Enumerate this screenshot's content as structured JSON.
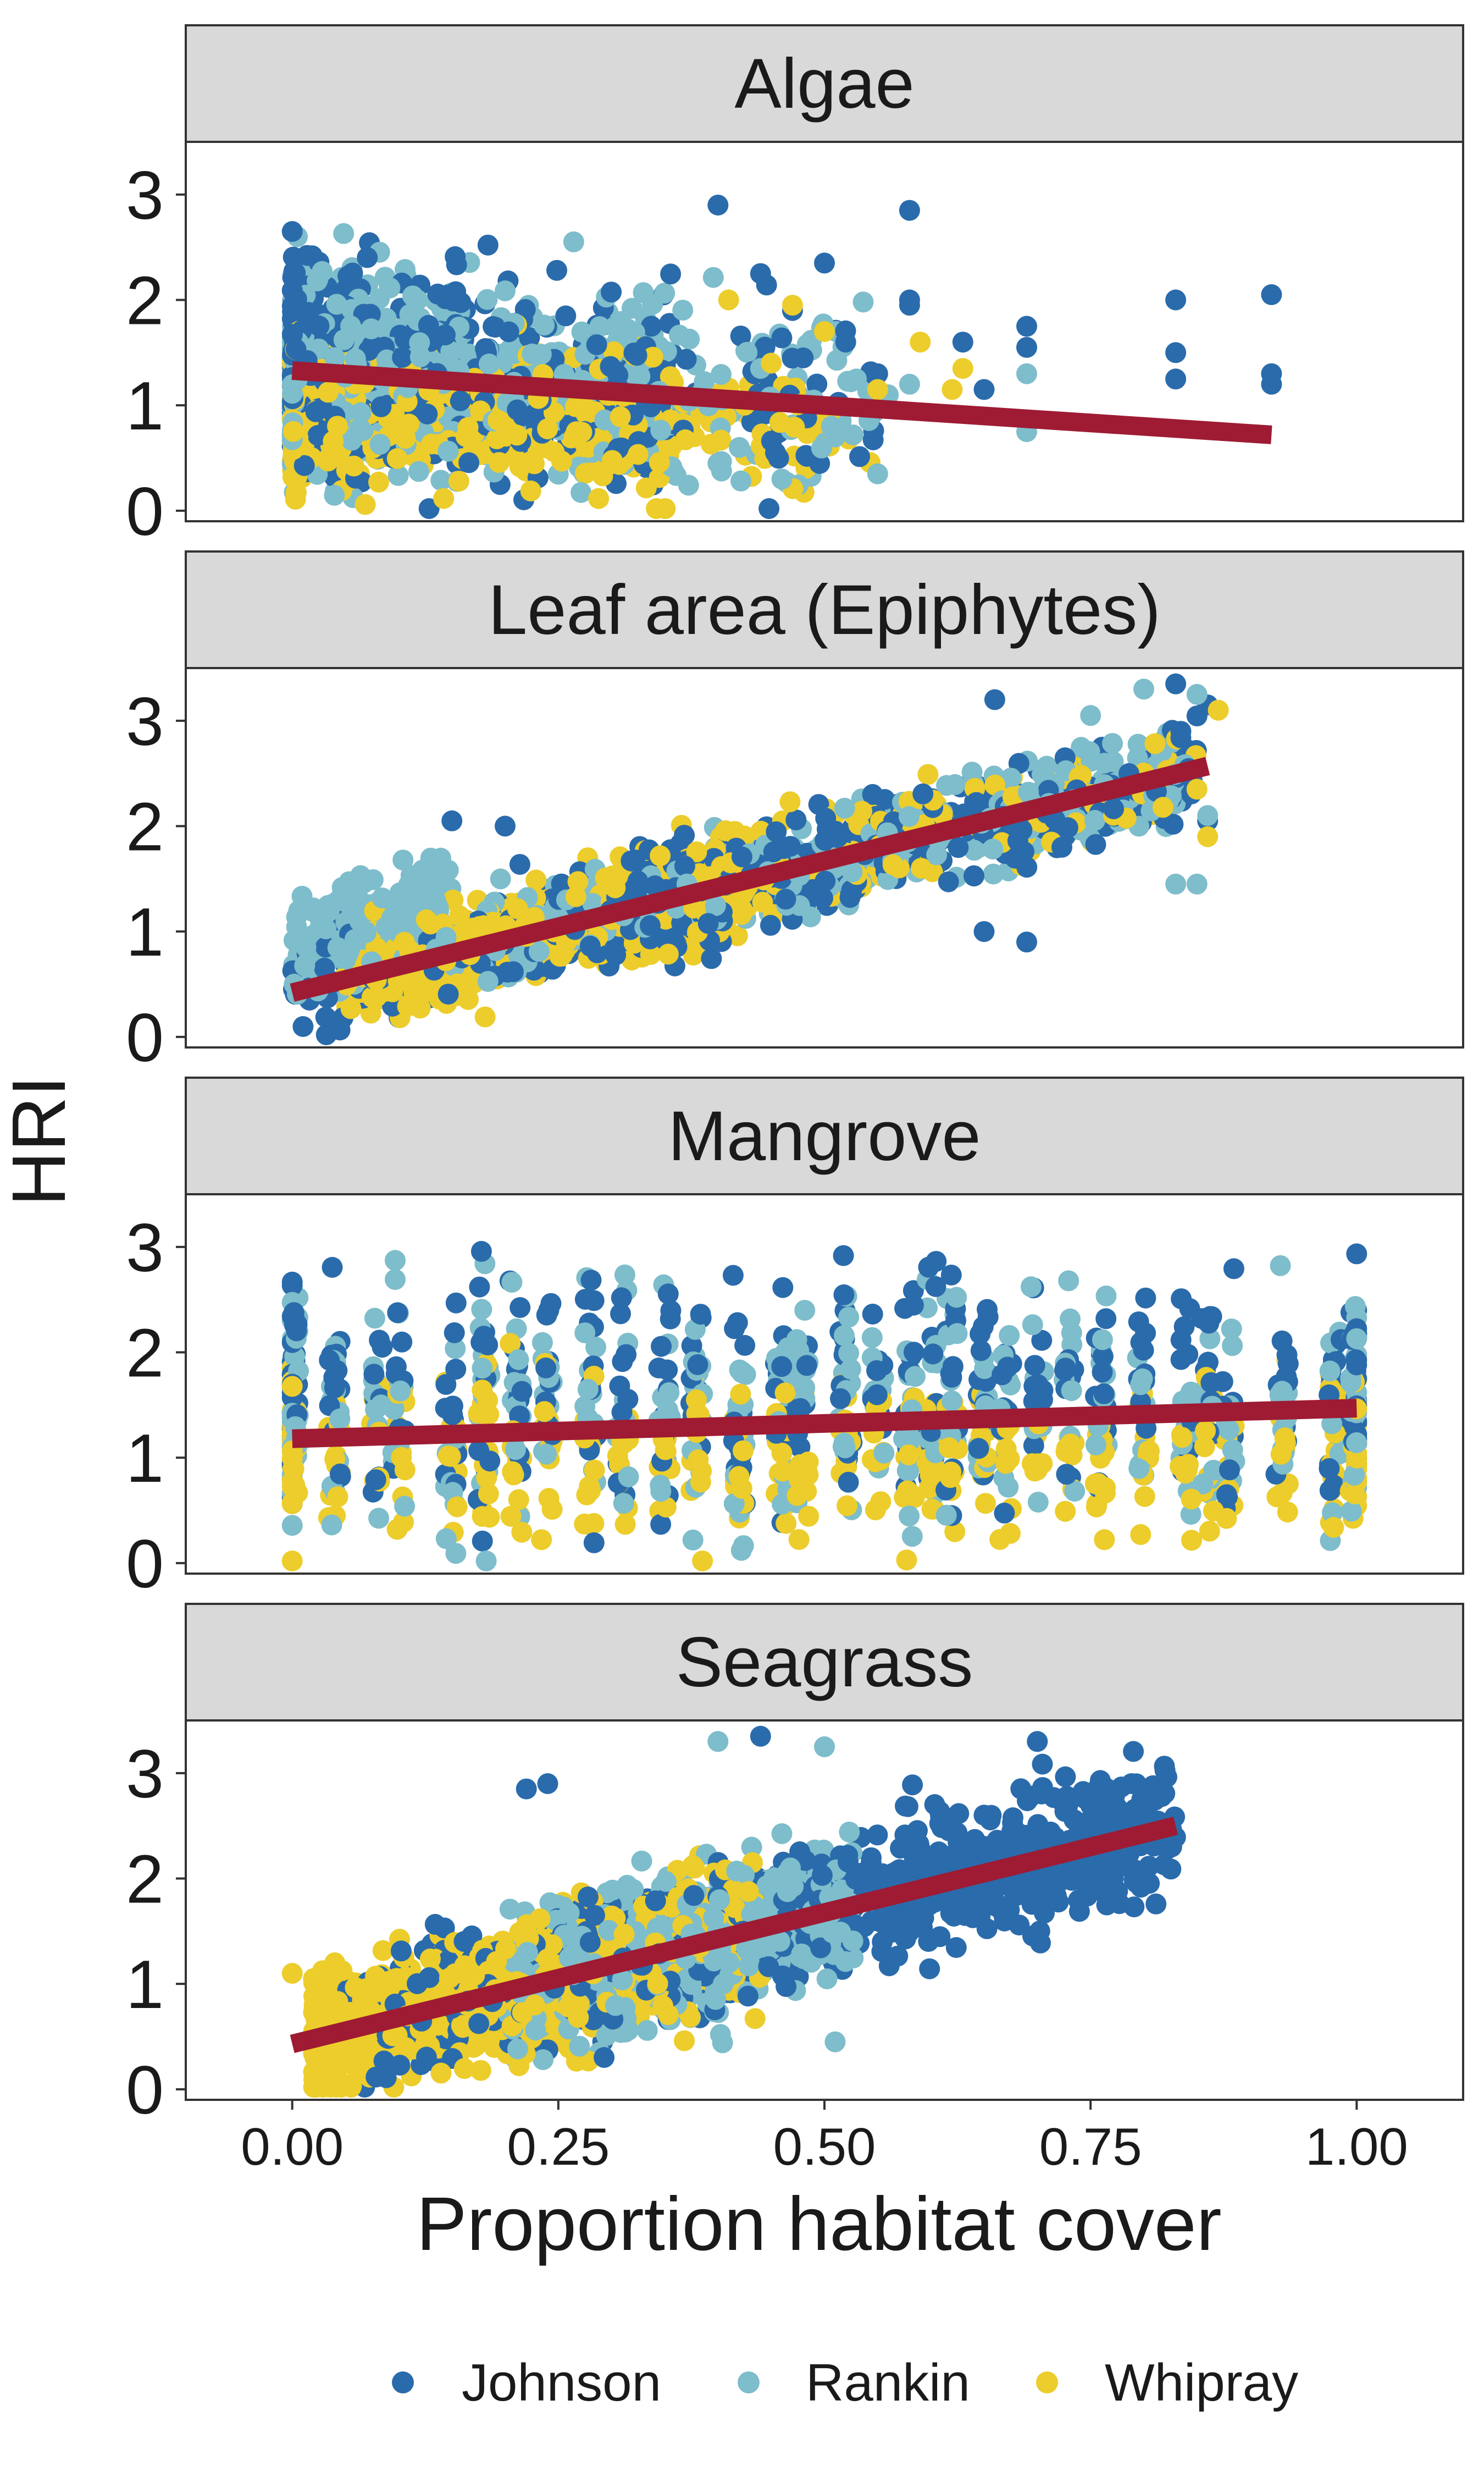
{
  "chart_data": {
    "type": "scatter",
    "facets": [
      {
        "title": "Algae",
        "trend": {
          "x": [
            0.0,
            0.92
          ],
          "y": [
            1.33,
            0.72
          ]
        },
        "outliers": {
          "Johnson": [
            [
              0.4,
              2.9
            ],
            [
              0.58,
              2.85
            ],
            [
              0.5,
              2.35
            ],
            [
              0.58,
              2.0
            ],
            [
              0.58,
              1.95
            ],
            [
              0.63,
              1.6
            ],
            [
              0.69,
              1.75
            ],
            [
              0.69,
              1.55
            ],
            [
              0.83,
              2.0
            ],
            [
              0.83,
              1.5
            ],
            [
              0.83,
              1.25
            ],
            [
              0.92,
              2.05
            ],
            [
              0.92,
              1.3
            ],
            [
              0.92,
              1.2
            ],
            [
              0.65,
              1.15
            ],
            [
              0.55,
              1.3
            ],
            [
              0.47,
              1.9
            ],
            [
              0.44,
              2.25
            ],
            [
              0.52,
              1.6
            ],
            [
              0.48,
              1.45
            ]
          ],
          "Rankin": [
            [
              0.44,
              1.35
            ],
            [
              0.51,
              0.7
            ],
            [
              0.55,
              0.35
            ],
            [
              0.69,
              0.75
            ],
            [
              0.69,
              1.3
            ],
            [
              0.58,
              1.2
            ],
            [
              0.56,
              1.1
            ],
            [
              0.46,
              0.3
            ],
            [
              0.4,
              0.45
            ],
            [
              0.49,
              1.05
            ],
            [
              0.53,
              1.25
            ],
            [
              0.42,
              0.6
            ]
          ],
          "Whipray": [
            [
              0.63,
              1.35
            ],
            [
              0.59,
              1.6
            ],
            [
              0.62,
              1.15
            ],
            [
              0.47,
              1.95
            ],
            [
              0.55,
              1.15
            ],
            [
              0.41,
              2.0
            ],
            [
              0.45,
              1.4
            ],
            [
              0.5,
              1.7
            ]
          ]
        }
      },
      {
        "title": "Leaf area (Epiphytes)",
        "trend": {
          "x": [
            0.0,
            0.86
          ],
          "y": [
            0.42,
            2.57
          ]
        },
        "outliers": {
          "Johnson": [
            [
              0.15,
              2.05
            ],
            [
              0.2,
              2.0
            ],
            [
              0.69,
              0.9
            ],
            [
              0.65,
              1.0
            ],
            [
              0.66,
              3.2
            ],
            [
              0.83,
              3.35
            ],
            [
              0.86,
              3.15
            ],
            [
              0.86,
              2.05
            ]
          ],
          "Rankin": [
            [
              0.8,
              3.3
            ],
            [
              0.85,
              3.25
            ],
            [
              0.83,
              1.45
            ],
            [
              0.85,
              1.45
            ],
            [
              0.86,
              2.1
            ],
            [
              0.75,
              3.05
            ]
          ],
          "Whipray": [
            [
              0.86,
              1.9
            ],
            [
              0.85,
              2.35
            ],
            [
              0.87,
              3.1
            ]
          ]
        }
      },
      {
        "title": "Mangrove",
        "trend": {
          "x": [
            0.0,
            1.0
          ],
          "y": [
            1.18,
            1.47
          ]
        },
        "outliers": {
          "Johnson": [],
          "Rankin": [],
          "Whipray": []
        }
      },
      {
        "title": "Seagrass",
        "trend": {
          "x": [
            0.0,
            0.83
          ],
          "y": [
            0.43,
            2.5
          ]
        },
        "outliers": {
          "Johnson": [
            [
              0.44,
              3.35
            ],
            [
              0.7,
              3.3
            ],
            [
              0.24,
              2.9
            ],
            [
              0.22,
              2.85
            ]
          ],
          "Rankin": [
            [
              0.4,
              3.3
            ],
            [
              0.5,
              3.25
            ],
            [
              0.51,
              0.45
            ]
          ],
          "Whipray": [
            [
              0.04,
              1.2
            ],
            [
              0.0,
              1.1
            ],
            [
              0.02,
              1.05
            ]
          ]
        }
      }
    ],
    "series": [
      {
        "name": "Johnson",
        "color": "#2a6bab"
      },
      {
        "name": "Rankin",
        "color": "#7ebdcb"
      },
      {
        "name": "Whipray",
        "color": "#eccd2b"
      }
    ],
    "trend_color": "#9e1b33",
    "xlabel": "Proportion habitat cover",
    "ylabel": "HRI",
    "xlim": [
      -0.1,
      1.1
    ],
    "ylim": [
      -0.1,
      3.5
    ],
    "xticks": [
      "0.00",
      "0.25",
      "0.50",
      "0.75",
      "1.00"
    ],
    "yticks": [
      "0",
      "1",
      "2",
      "3"
    ],
    "grid": false,
    "legend_position": "bottom"
  }
}
